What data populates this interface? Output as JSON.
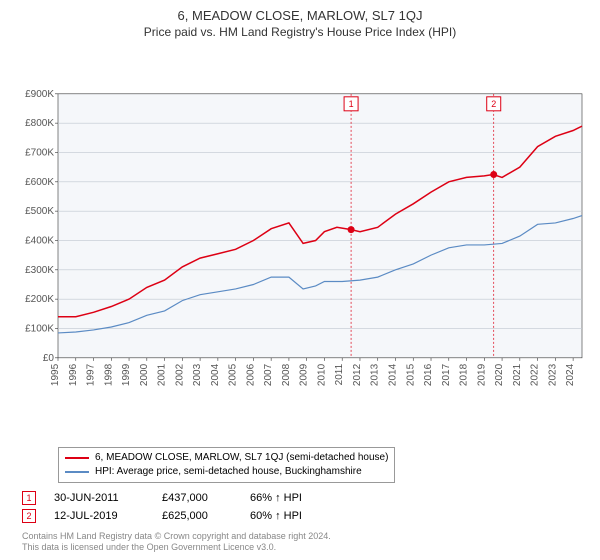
{
  "title": "6, MEADOW CLOSE, MARLOW, SL7 1QJ",
  "subtitle": "Price paid vs. HM Land Registry's House Price Index (HPI)",
  "chart": {
    "type": "line",
    "background_color": "#f5f7fa",
    "grid_color": "#bfc7d0",
    "axis_text_color": "#555555",
    "xlim": [
      1995,
      2024.5
    ],
    "ylim": [
      0,
      900000
    ],
    "ytick_step": 100000,
    "ytick_labels": [
      "£0",
      "£100K",
      "£200K",
      "£300K",
      "£400K",
      "£500K",
      "£600K",
      "£700K",
      "£800K",
      "£900K"
    ],
    "xticks": [
      1995,
      1996,
      1997,
      1998,
      1999,
      2000,
      2001,
      2002,
      2003,
      2004,
      2005,
      2006,
      2007,
      2008,
      2009,
      2010,
      2011,
      2012,
      2013,
      2014,
      2015,
      2016,
      2017,
      2018,
      2019,
      2020,
      2021,
      2022,
      2023,
      2024
    ],
    "series": [
      {
        "name": "property",
        "color": "#dd0014",
        "width": 1.5,
        "x": [
          1995,
          1996,
          1997,
          1998,
          1999,
          2000,
          2001,
          2002,
          2003,
          2004,
          2005,
          2006,
          2007,
          2008,
          2008.8,
          2009.5,
          2010,
          2010.7,
          2011.5,
          2012,
          2013,
          2014,
          2015,
          2016,
          2017,
          2018,
          2019,
          2019.5,
          2020,
          2021,
          2022,
          2023,
          2024,
          2024.5
        ],
        "y": [
          140000,
          140000,
          155000,
          175000,
          200000,
          240000,
          265000,
          310000,
          340000,
          355000,
          370000,
          400000,
          440000,
          460000,
          390000,
          400000,
          430000,
          445000,
          437000,
          430000,
          445000,
          490000,
          525000,
          565000,
          600000,
          615000,
          620000,
          625000,
          615000,
          650000,
          720000,
          755000,
          775000,
          790000
        ]
      },
      {
        "name": "hpi",
        "color": "#5b8bc4",
        "width": 1.2,
        "x": [
          1995,
          1996,
          1997,
          1998,
          1999,
          2000,
          2001,
          2002,
          2003,
          2004,
          2005,
          2006,
          2007,
          2008,
          2008.8,
          2009.5,
          2010,
          2011,
          2012,
          2013,
          2014,
          2015,
          2016,
          2017,
          2018,
          2019,
          2020,
          2021,
          2022,
          2023,
          2024,
          2024.5
        ],
        "y": [
          85000,
          88000,
          95000,
          105000,
          120000,
          145000,
          160000,
          195000,
          215000,
          225000,
          235000,
          250000,
          275000,
          275000,
          235000,
          245000,
          260000,
          260000,
          265000,
          275000,
          300000,
          320000,
          350000,
          375000,
          385000,
          385000,
          390000,
          415000,
          455000,
          460000,
          475000,
          485000
        ]
      }
    ],
    "sale_markers": [
      {
        "n": "1",
        "x": 2011.5,
        "y": 437000,
        "color": "#dd0014"
      },
      {
        "n": "2",
        "x": 2019.53,
        "y": 625000,
        "color": "#dd0014"
      }
    ],
    "vline_color": "#dd0014",
    "vline_dash": "2,2"
  },
  "legend": {
    "items": [
      {
        "color": "#dd0014",
        "label": "6, MEADOW CLOSE, MARLOW, SL7 1QJ (semi-detached house)"
      },
      {
        "color": "#5b8bc4",
        "label": "HPI: Average price, semi-detached house, Buckinghamshire"
      }
    ]
  },
  "sales": [
    {
      "n": "1",
      "color": "#dd0014",
      "date": "30-JUN-2011",
      "price": "£437,000",
      "hpi": "66% ↑ HPI"
    },
    {
      "n": "2",
      "color": "#dd0014",
      "date": "12-JUL-2019",
      "price": "£625,000",
      "hpi": "60% ↑ HPI"
    }
  ],
  "footer": {
    "line1": "Contains HM Land Registry data © Crown copyright and database right 2024.",
    "line2": "This data is licensed under the Open Government Licence v3.0."
  }
}
